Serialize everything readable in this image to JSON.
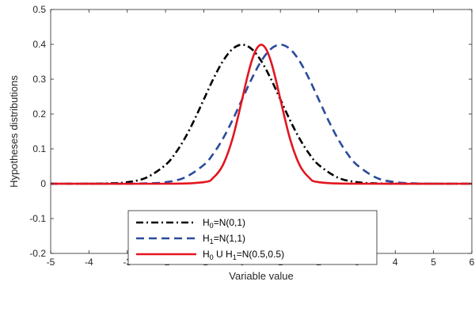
{
  "chart_data": {
    "type": "line",
    "xlabel": "Variable value",
    "ylabel": "Hypotheses distributions",
    "xlim": [
      -5,
      6
    ],
    "ylim": [
      -0.2,
      0.5
    ],
    "xticks": [
      -5,
      -4,
      -3,
      -2,
      -1,
      0,
      1,
      2,
      3,
      4,
      5,
      6
    ],
    "yticks": [
      -0.2,
      -0.1,
      0,
      0.1,
      0.2,
      0.3,
      0.4,
      0.5
    ],
    "xtick_labels": [
      "-5",
      "-4",
      "-3",
      "-2",
      "-1",
      "0",
      "1",
      "2",
      "3",
      "4",
      "5",
      "6"
    ],
    "ytick_labels": [
      "-0.2",
      "-0.1",
      "0",
      "0.1",
      "0.2",
      "0.3",
      "0.4",
      "0.5"
    ],
    "grid": false,
    "legend_position": "lower-center",
    "series": [
      {
        "name": "H0=N(0,1)",
        "label_main": "H",
        "label_sub": "0",
        "label_rest": "=N(0,1)",
        "color": "#000000",
        "style": "dash-dot",
        "x": [
          -5,
          -4.5,
          -4,
          -3.5,
          -3,
          -2.5,
          -2,
          -1.75,
          -1.5,
          -1.25,
          -1,
          -0.75,
          -0.5,
          -0.25,
          0,
          0.25,
          0.5,
          0.75,
          1,
          1.25,
          1.5,
          1.75,
          2,
          2.5,
          3,
          3.5,
          4,
          4.5,
          5,
          5.5,
          6
        ],
        "y": [
          0.0,
          0.0,
          0.0001,
          0.0009,
          0.0044,
          0.0175,
          0.054,
          0.0863,
          0.1295,
          0.1826,
          0.242,
          0.3011,
          0.3521,
          0.3867,
          0.399,
          0.3867,
          0.3521,
          0.3011,
          0.242,
          0.1826,
          0.1295,
          0.0863,
          0.054,
          0.0175,
          0.0044,
          0.0009,
          0.0001,
          0.0,
          0.0,
          0.0,
          0.0
        ]
      },
      {
        "name": "H1=N(1,1)",
        "label_main": "H",
        "label_sub": "1",
        "label_rest": "=N(1,1)",
        "color": "#2a4b9b",
        "style": "dashed",
        "x": [
          -5,
          -4,
          -3,
          -2.5,
          -2,
          -1.5,
          -1,
          -0.75,
          -0.5,
          -0.25,
          0,
          0.25,
          0.5,
          0.75,
          1,
          1.25,
          1.5,
          1.75,
          2,
          2.25,
          2.5,
          2.75,
          3,
          3.5,
          4,
          4.5,
          5,
          5.5,
          6
        ],
        "y": [
          0.0,
          0.0,
          0.0001,
          0.0009,
          0.0044,
          0.0175,
          0.054,
          0.0863,
          0.1295,
          0.1826,
          0.242,
          0.3011,
          0.3521,
          0.3867,
          0.399,
          0.3867,
          0.3521,
          0.3011,
          0.242,
          0.1826,
          0.1295,
          0.0863,
          0.054,
          0.0175,
          0.0044,
          0.0009,
          0.0001,
          0.0,
          0.0
        ]
      },
      {
        "name": "H0 U H1=N(0.5,0.5)",
        "label_main": "H",
        "label_sub": "0",
        "label_rest": " U H",
        "label_sub2": "1",
        "label_rest2": "=N(0.5,0.5)",
        "color": "#e3151f",
        "style": "solid",
        "x": [
          -5,
          -2,
          -1,
          -0.75,
          -0.5,
          -0.25,
          0,
          0.125,
          0.25,
          0.375,
          0.5,
          0.625,
          0.75,
          0.875,
          1,
          1.25,
          1.5,
          1.75,
          2,
          3,
          6
        ],
        "y": [
          0.0,
          0.0,
          0.0044,
          0.0175,
          0.054,
          0.1295,
          0.242,
          0.3011,
          0.3521,
          0.3867,
          0.399,
          0.3867,
          0.3521,
          0.3011,
          0.242,
          0.1295,
          0.054,
          0.0175,
          0.0044,
          0.0,
          0.0
        ]
      }
    ]
  }
}
